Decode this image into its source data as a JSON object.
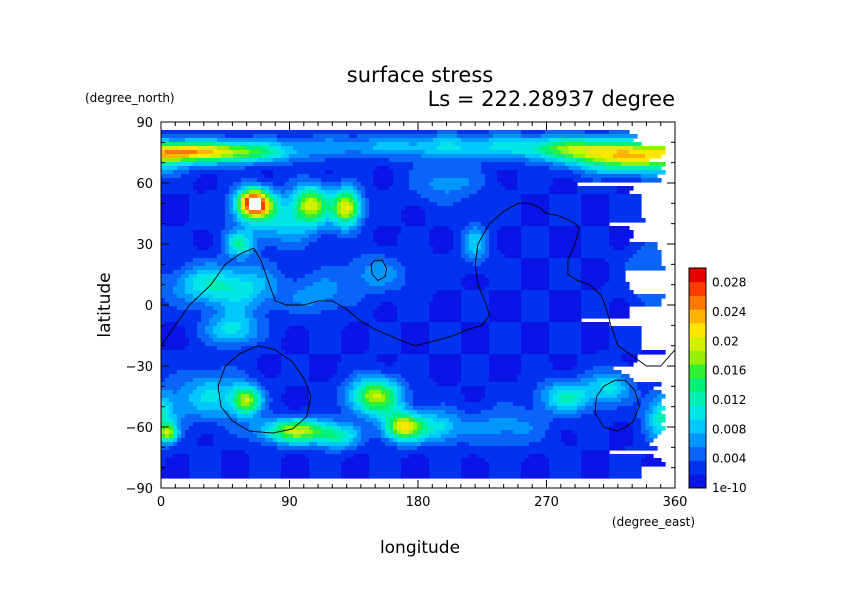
{
  "chart_data": {
    "type": "heatmap",
    "title": "surface stress",
    "subtitle": "Ls = 222.28937 degree",
    "xlabel": "longitude",
    "ylabel": "latitude",
    "x_units": "(degree_east)",
    "y_units": "(degree_north)",
    "xlim": [
      0,
      360
    ],
    "ylim": [
      -90,
      90
    ],
    "x_ticks": [
      "0",
      "90",
      "180",
      "270",
      "360"
    ],
    "y_ticks": [
      "90",
      "60",
      "30",
      "0",
      "−30",
      "−60",
      "−90"
    ],
    "x_tick_values": [
      0,
      90,
      180,
      270,
      360
    ],
    "y_tick_values": [
      90,
      60,
      30,
      0,
      -30,
      -60,
      -90
    ],
    "colorbar": {
      "labels": [
        "0.028",
        "0.024",
        "0.02",
        "0.016",
        "0.012",
        "0.008",
        "0.004",
        "1e-10"
      ],
      "label_values": [
        0.028,
        0.024,
        0.02,
        0.016,
        0.012,
        0.008,
        0.004,
        0
      ],
      "levels": [
        0,
        0.002,
        0.004,
        0.006,
        0.008,
        0.01,
        0.012,
        0.014,
        0.016,
        0.018,
        0.02,
        0.022,
        0.024,
        0.026,
        0.028,
        0.03
      ],
      "colors": [
        "#0a14e6",
        "#0032f0",
        "#0a64fa",
        "#0096ff",
        "#00c8ff",
        "#00e6e6",
        "#00f0b4",
        "#00f078",
        "#32f032",
        "#96f000",
        "#d2f000",
        "#ffe600",
        "#ffb400",
        "#ff7800",
        "#ff3c00",
        "#e60000"
      ],
      "overflow_color": "#ffffff"
    },
    "background_level": 0.002,
    "blobs": [
      {
        "lon": 40,
        "lat": 75,
        "rlon": 45,
        "rlat": 5,
        "amp": 0.018
      },
      {
        "lon": 10,
        "lat": 75,
        "rlon": 20,
        "rlat": 4,
        "amp": 0.006
      },
      {
        "lon": 230,
        "lat": 78,
        "rlon": 140,
        "rlat": 6,
        "amp": 0.008
      },
      {
        "lon": 330,
        "lat": 72,
        "rlon": 40,
        "rlat": 7,
        "amp": 0.018
      },
      {
        "lon": 290,
        "lat": 76,
        "rlon": 30,
        "rlat": 5,
        "amp": 0.008
      },
      {
        "lon": 65,
        "lat": 50,
        "rlon": 12,
        "rlat": 7,
        "amp": 0.03
      },
      {
        "lon": 105,
        "lat": 50,
        "rlon": 12,
        "rlat": 9,
        "amp": 0.016
      },
      {
        "lon": 130,
        "lat": 48,
        "rlon": 10,
        "rlat": 9,
        "amp": 0.02
      },
      {
        "lon": 85,
        "lat": 42,
        "rlon": 30,
        "rlat": 12,
        "amp": 0.008
      },
      {
        "lon": 55,
        "lat": 30,
        "rlon": 10,
        "rlat": 6,
        "amp": 0.01
      },
      {
        "lon": 30,
        "lat": 10,
        "rlon": 25,
        "rlat": 10,
        "amp": 0.008
      },
      {
        "lon": 60,
        "lat": 8,
        "rlon": 25,
        "rlat": 12,
        "amp": 0.007
      },
      {
        "lon": 50,
        "lat": -12,
        "rlon": 18,
        "rlat": 8,
        "amp": 0.009
      },
      {
        "lon": 110,
        "lat": 5,
        "rlon": 20,
        "rlat": 10,
        "amp": 0.005
      },
      {
        "lon": 150,
        "lat": 15,
        "rlon": 25,
        "rlat": 10,
        "amp": 0.005
      },
      {
        "lon": 60,
        "lat": -47,
        "rlon": 10,
        "rlat": 7,
        "amp": 0.016
      },
      {
        "lon": 35,
        "lat": -45,
        "rlon": 25,
        "rlat": 12,
        "amp": 0.008
      },
      {
        "lon": 95,
        "lat": -62,
        "rlon": 25,
        "rlat": 6,
        "amp": 0.018
      },
      {
        "lon": 150,
        "lat": -45,
        "rlon": 18,
        "rlat": 9,
        "amp": 0.018
      },
      {
        "lon": 170,
        "lat": -60,
        "rlon": 14,
        "rlat": 7,
        "amp": 0.02
      },
      {
        "lon": 195,
        "lat": -60,
        "rlon": 15,
        "rlat": 8,
        "amp": 0.008
      },
      {
        "lon": 125,
        "lat": -65,
        "rlon": 15,
        "rlat": 6,
        "amp": 0.008
      },
      {
        "lon": 285,
        "lat": -45,
        "rlon": 20,
        "rlat": 8,
        "amp": 0.01
      },
      {
        "lon": 315,
        "lat": -40,
        "rlon": 15,
        "rlat": 8,
        "amp": 0.008
      },
      {
        "lon": 355,
        "lat": -55,
        "rlon": 15,
        "rlat": 12,
        "amp": 0.012
      },
      {
        "lon": 5,
        "lat": -63,
        "rlon": 6,
        "rlat": 4,
        "amp": 0.014
      },
      {
        "lon": 240,
        "lat": -60,
        "rlon": 30,
        "rlat": 10,
        "amp": 0.005
      },
      {
        "lon": 220,
        "lat": 30,
        "rlon": 10,
        "rlat": 10,
        "amp": 0.007
      },
      {
        "lon": 200,
        "lat": 60,
        "rlon": 25,
        "rlat": 10,
        "amp": 0.005
      },
      {
        "lon": 340,
        "lat": 15,
        "rlon": 15,
        "rlat": 15,
        "amp": 0.004
      }
    ],
    "contours": [
      {
        "name": "coastline-main",
        "points": [
          [
            0,
            -20
          ],
          [
            10,
            -10
          ],
          [
            20,
            0
          ],
          [
            35,
            10
          ],
          [
            45,
            20
          ],
          [
            55,
            25
          ],
          [
            65,
            28
          ],
          [
            70,
            22
          ],
          [
            75,
            12
          ],
          [
            80,
            2
          ],
          [
            88,
            0
          ],
          [
            100,
            0
          ],
          [
            110,
            2
          ],
          [
            120,
            2
          ],
          [
            130,
            -2
          ],
          [
            140,
            -8
          ],
          [
            150,
            -12
          ],
          [
            160,
            -15
          ],
          [
            170,
            -18
          ],
          [
            178,
            -20
          ],
          [
            190,
            -18
          ],
          [
            205,
            -15
          ],
          [
            215,
            -12
          ],
          [
            225,
            -10
          ],
          [
            230,
            -5
          ],
          [
            228,
            0
          ],
          [
            222,
            10
          ],
          [
            220,
            20
          ],
          [
            222,
            30
          ],
          [
            230,
            40
          ],
          [
            240,
            46
          ],
          [
            250,
            50
          ],
          [
            258,
            50
          ],
          [
            265,
            48
          ],
          [
            270,
            45
          ],
          [
            278,
            44
          ],
          [
            285,
            42
          ],
          [
            290,
            40
          ],
          [
            293,
            38
          ],
          [
            290,
            30
          ],
          [
            285,
            22
          ],
          [
            285,
            15
          ],
          [
            292,
            12
          ],
          [
            300,
            10
          ],
          [
            308,
            5
          ],
          [
            312,
            -2
          ],
          [
            315,
            -10
          ],
          [
            320,
            -20
          ],
          [
            330,
            -25
          ],
          [
            340,
            -30
          ],
          [
            350,
            -30
          ],
          [
            360,
            -22
          ]
        ]
      },
      {
        "name": "contour-island",
        "points": [
          [
            147,
            20
          ],
          [
            150,
            22
          ],
          [
            155,
            22
          ],
          [
            158,
            18
          ],
          [
            157,
            14
          ],
          [
            152,
            12
          ],
          [
            148,
            15
          ],
          [
            147,
            20
          ]
        ]
      },
      {
        "name": "contour-sw-loop",
        "points": [
          [
            40,
            -40
          ],
          [
            45,
            -30
          ],
          [
            55,
            -24
          ],
          [
            68,
            -20
          ],
          [
            80,
            -22
          ],
          [
            92,
            -28
          ],
          [
            100,
            -36
          ],
          [
            105,
            -45
          ],
          [
            102,
            -55
          ],
          [
            92,
            -61
          ],
          [
            78,
            -63
          ],
          [
            62,
            -62
          ],
          [
            50,
            -57
          ],
          [
            42,
            -50
          ],
          [
            40,
            -40
          ]
        ]
      },
      {
        "name": "contour-se-loop",
        "points": [
          [
            305,
            -45
          ],
          [
            310,
            -40
          ],
          [
            318,
            -37
          ],
          [
            325,
            -37
          ],
          [
            332,
            -42
          ],
          [
            335,
            -50
          ],
          [
            330,
            -58
          ],
          [
            320,
            -62
          ],
          [
            310,
            -60
          ],
          [
            304,
            -53
          ],
          [
            305,
            -45
          ]
        ]
      }
    ]
  }
}
